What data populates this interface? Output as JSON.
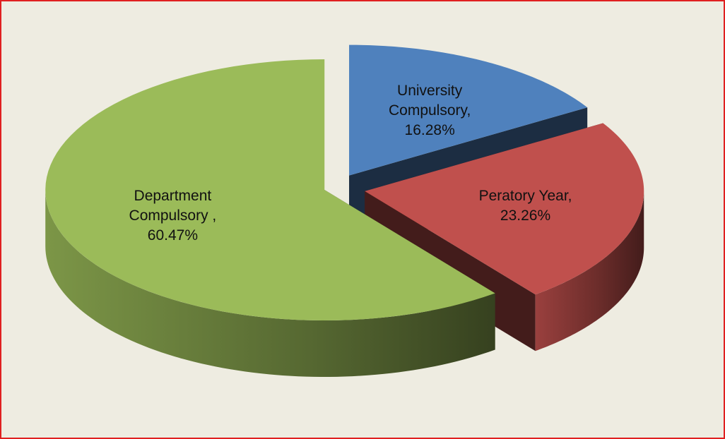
{
  "chart_data": {
    "type": "pie3d",
    "categories": [
      "University Compulsory,",
      "Peratory Year,",
      "Department Compulsory ,"
    ],
    "values": [
      16.28,
      23.26,
      60.47
    ],
    "value_labels": [
      "16.28%",
      "23.26%",
      "60.47%"
    ],
    "colors": [
      "#4f81bd",
      "#c0504d",
      "#9bbb59"
    ]
  }
}
